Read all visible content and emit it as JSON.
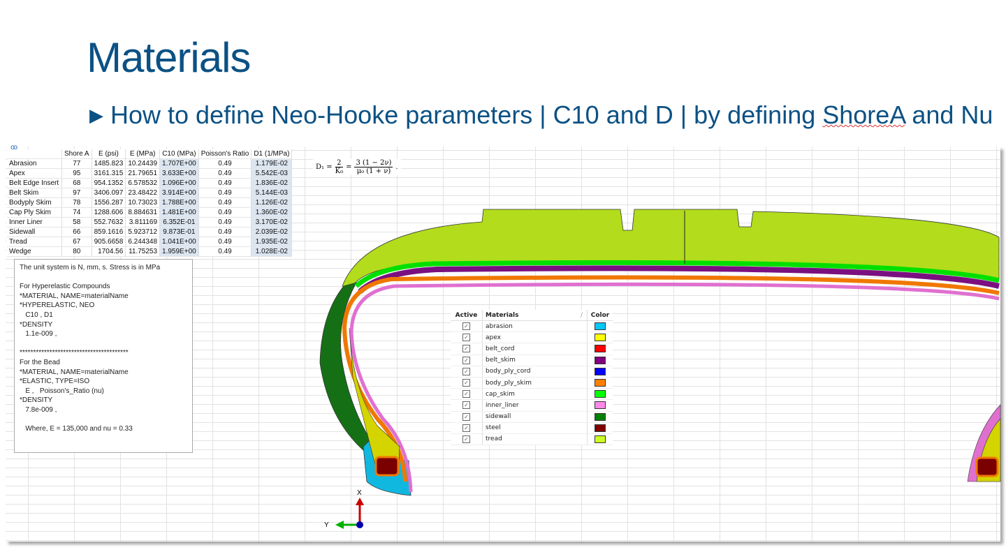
{
  "title": "Materials",
  "subtitle": {
    "before": "How to define Neo-Hooke parameters | C10 and D | by defining ",
    "underlined": "ShoreA",
    "after": " and Nu"
  },
  "table": {
    "headers": [
      "",
      "Shore A",
      "E (psi)",
      "E (MPa)",
      "C10 (MPa)",
      "Poisson's Ratio",
      "D1 (1/MPa)"
    ],
    "rows": [
      [
        "Abrasion",
        "77",
        "1485.823",
        "10.24439",
        "1.707E+00",
        "0.49",
        "1.179E-02"
      ],
      [
        "Apex",
        "95",
        "3161.315",
        "21.79651",
        "3.633E+00",
        "0.49",
        "5.542E-03"
      ],
      [
        "Belt Edge Insert",
        "68",
        "954.1352",
        "6.578532",
        "1.096E+00",
        "0.49",
        "1.836E-02"
      ],
      [
        "Belt Skim",
        "97",
        "3406.097",
        "23.48422",
        "3.914E+00",
        "0.49",
        "5.144E-03"
      ],
      [
        "Bodyply Skim",
        "78",
        "1556.287",
        "10.73023",
        "1.788E+00",
        "0.49",
        "1.126E-02"
      ],
      [
        "Cap Ply Skim",
        "74",
        "1288.606",
        "8.884631",
        "1.481E+00",
        "0.49",
        "1.360E-02"
      ],
      [
        "Inner Liner",
        "58",
        "552.7632",
        "3.811169",
        "6.352E-01",
        "0.49",
        "3.170E-02"
      ],
      [
        "Sidewall",
        "66",
        "859.1616",
        "5.923712",
        "9.873E-01",
        "0.49",
        "2.039E-02"
      ],
      [
        "Tread",
        "67",
        "905.6658",
        "6.244348",
        "1.041E+00",
        "0.49",
        "1.935E-02"
      ],
      [
        "Wedge",
        "80",
        "1704.56",
        "11.75253",
        "1.959E+00",
        "0.49",
        "1.028E-02"
      ]
    ]
  },
  "formula": {
    "lhs": "D₁ =",
    "f1n": "2",
    "f1d": "K₀",
    "eq": "=",
    "f2n": "3 (1 − 2ν)",
    "f2d": "μ₀ (1 + ν)",
    "end": "."
  },
  "note": "The unit system is N, mm, s. Stress is in MPa\n\nFor Hyperelastic Compounds\n*MATERIAL, NAME=materialName\n*HYPERELASTIC, NEO\n   C10 , D1\n*DENSITY\n   1.1e-009 ,\n\n****************************************\nFor the Bead\n*MATERIAL, NAME=materialName\n*ELASTIC, TYPE=ISO\n   E ,   Poisson's_Ratio (nu)\n*DENSITY\n   7.8e-009 ,\n\n   Where, E = 135,000 and nu = 0.33",
  "legend": {
    "headers": {
      "active": "Active",
      "materials": "Materials",
      "color": "Color"
    },
    "items": [
      {
        "name": "abrasion",
        "color": "#00c8f8"
      },
      {
        "name": "apex",
        "color": "#ffff00"
      },
      {
        "name": "belt_cord",
        "color": "#ff0000"
      },
      {
        "name": "belt_skim",
        "color": "#800080"
      },
      {
        "name": "body_ply_cord",
        "color": "#0000ff"
      },
      {
        "name": "body_ply_skim",
        "color": "#ff8000"
      },
      {
        "name": "cap_skim",
        "color": "#00ff00"
      },
      {
        "name": "inner_liner",
        "color": "#ff88e8"
      },
      {
        "name": "sidewall",
        "color": "#008000"
      },
      {
        "name": "steel",
        "color": "#800000"
      },
      {
        "name": "tread",
        "color": "#ccff22"
      }
    ]
  },
  "axes": {
    "x": "X",
    "y": "Y"
  }
}
